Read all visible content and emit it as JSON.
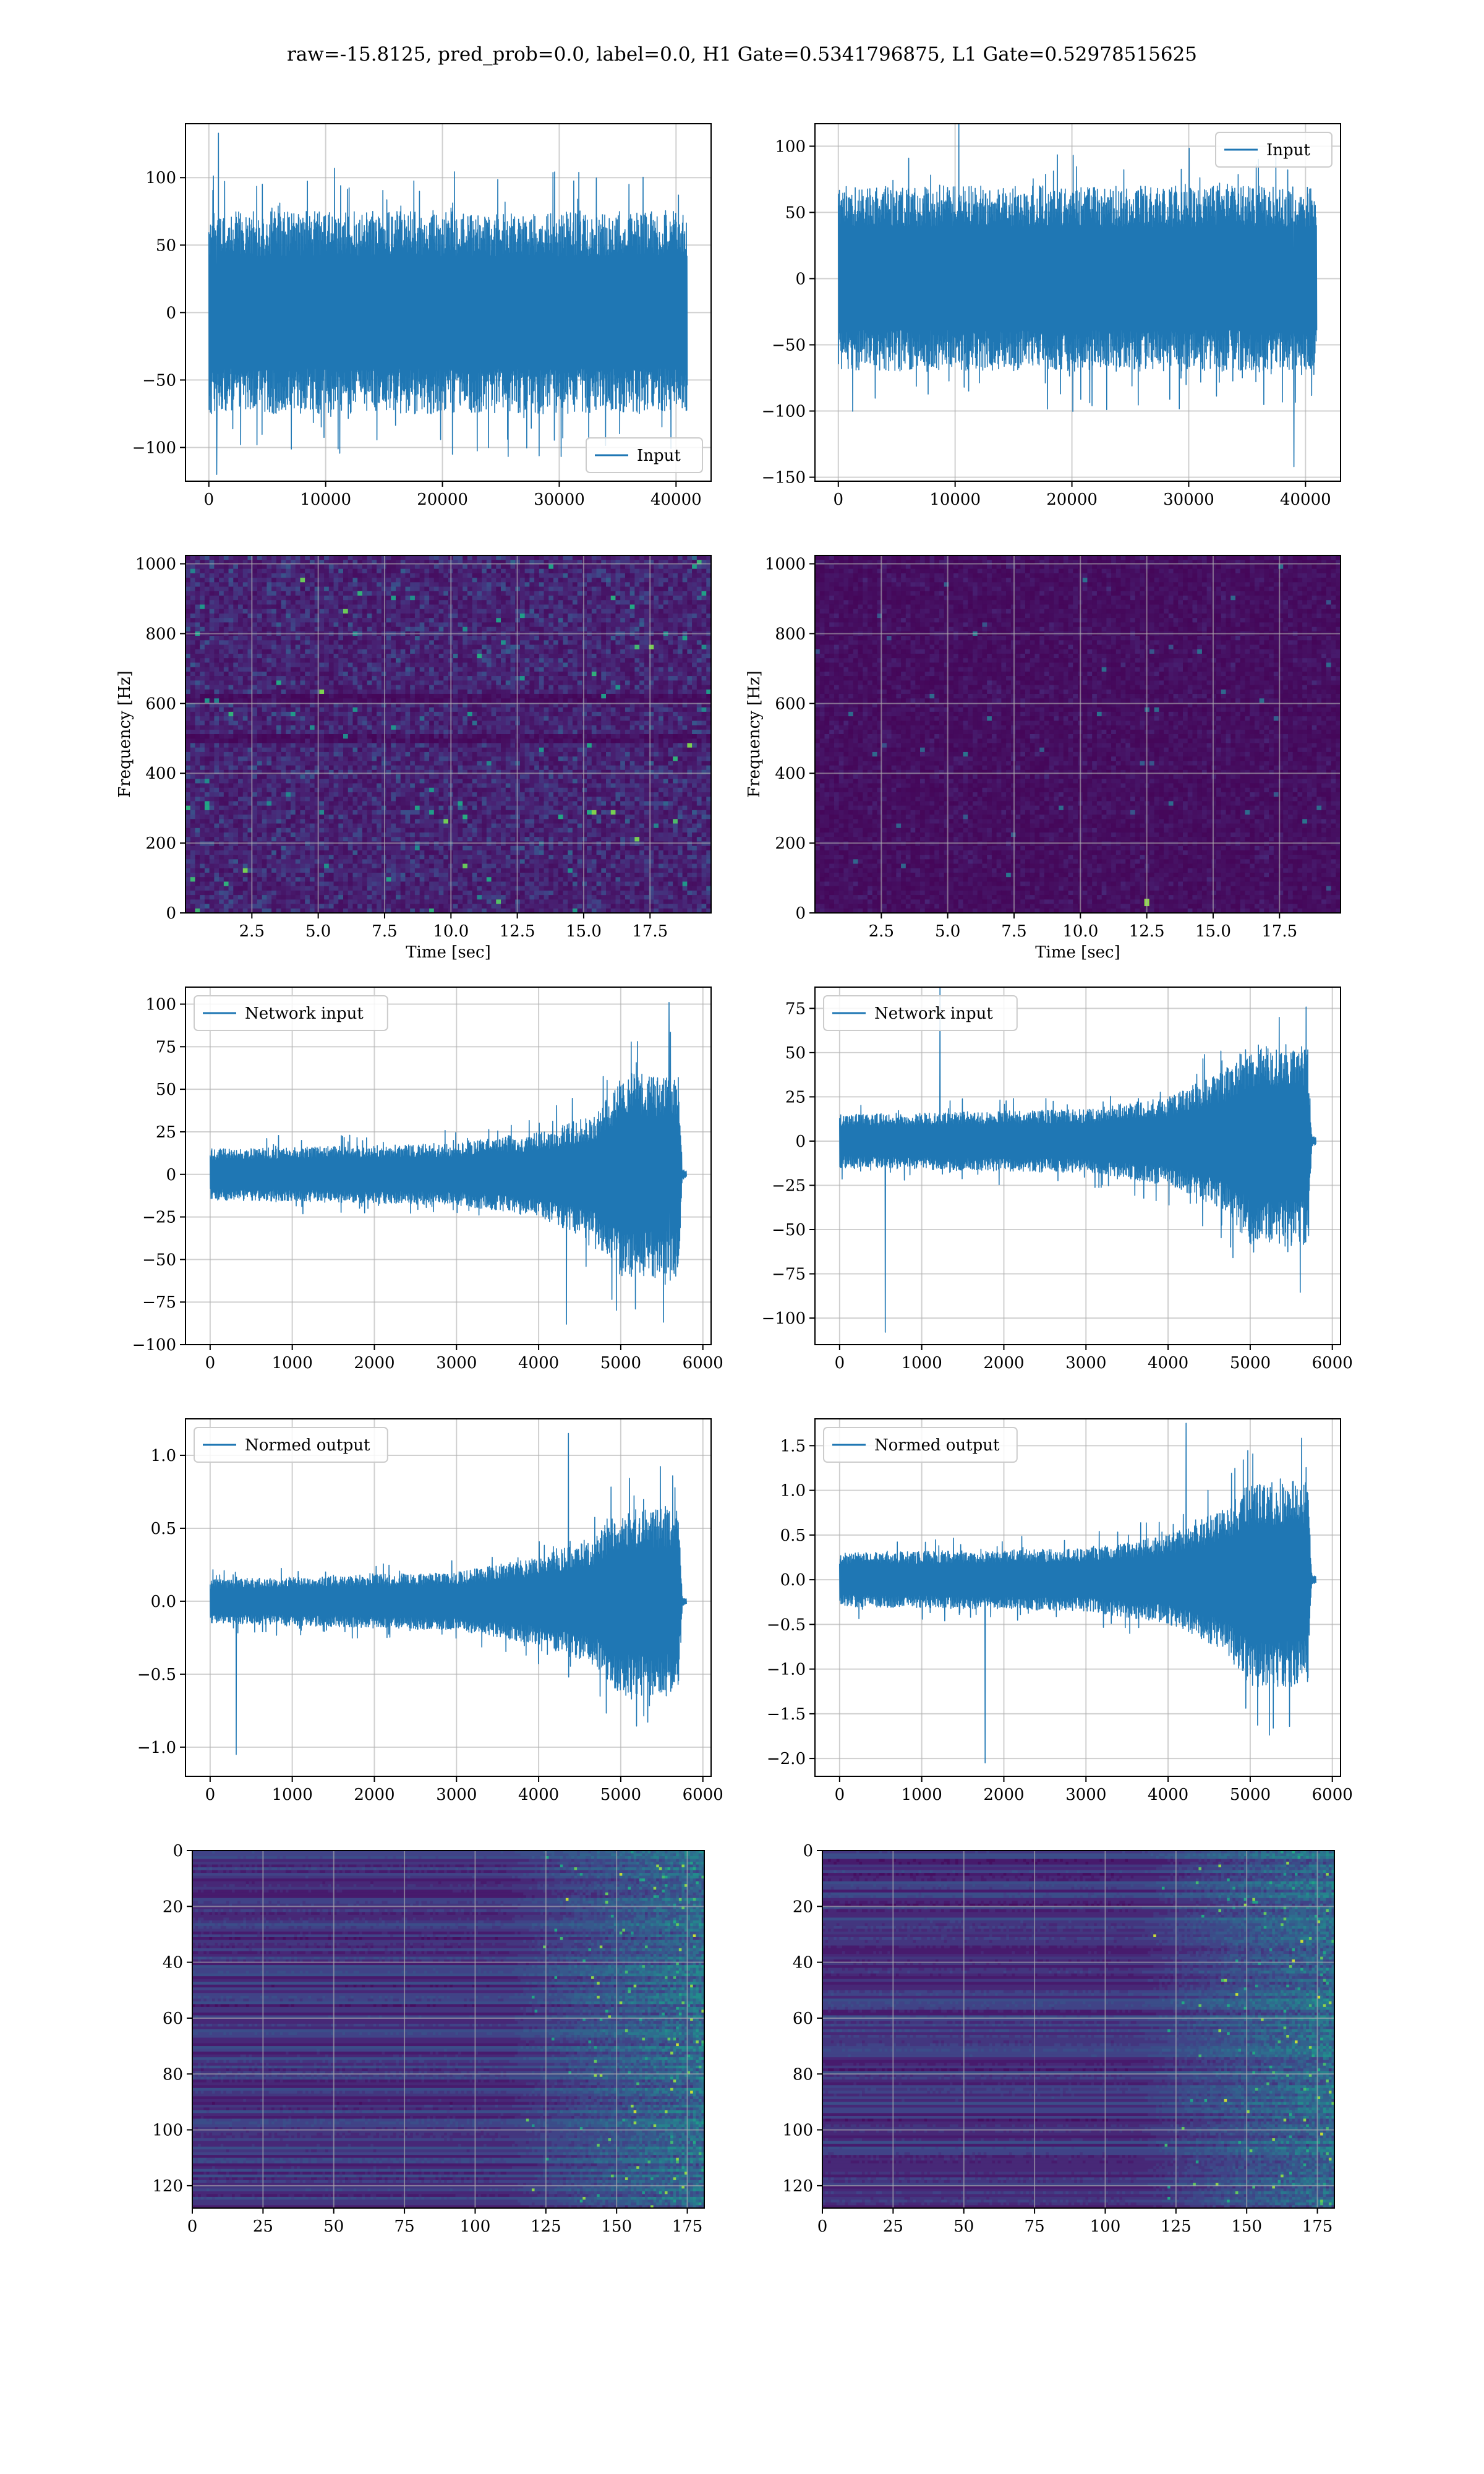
{
  "figure": {
    "title": "raw=-15.8125, pred_prob=0.0, label=0.0, H1 Gate=0.5341796875, L1 Gate=0.52978515625",
    "line_color": "#1f77b4",
    "grid": true,
    "heatmap_colormap": "viridis"
  },
  "chart_data": [
    {
      "id": "h1-input",
      "type": "line",
      "x": [
        0,
        40960
      ],
      "xlim": [
        -2000,
        43000
      ],
      "ylim": [
        -125,
        140
      ],
      "xticks": [
        0,
        10000,
        20000,
        30000,
        40000
      ],
      "xtick_labels": [
        "0",
        "10000",
        "20000",
        "30000",
        "40000"
      ],
      "yticks": [
        -100,
        -50,
        0,
        50,
        100
      ],
      "ytick_labels": [
        "−100",
        "−50",
        "0",
        "50",
        "100"
      ],
      "xlabel": "",
      "ylabel": "",
      "series": [
        {
          "name": "Input",
          "profile": [
            [
              0,
              75,
              -75
            ],
            [
              0.25,
              75,
              -75
            ],
            [
              0.5,
              75,
              -75
            ],
            [
              0.75,
              75,
              -75
            ],
            [
              1,
              75,
              -75
            ]
          ],
          "peak_max": 133,
          "peak_min": -120
        }
      ],
      "legend_position": "lower-right"
    },
    {
      "id": "l1-input",
      "type": "line",
      "x": [
        0,
        40960
      ],
      "xlim": [
        -2000,
        43000
      ],
      "ylim": [
        -153,
        117
      ],
      "xticks": [
        0,
        10000,
        20000,
        30000,
        40000
      ],
      "xtick_labels": [
        "0",
        "10000",
        "20000",
        "30000",
        "40000"
      ],
      "yticks": [
        -150,
        -100,
        -50,
        0,
        50,
        100
      ],
      "ytick_labels": [
        "−150",
        "−100",
        "−50",
        "0",
        "50",
        "100"
      ],
      "xlabel": "",
      "ylabel": "",
      "series": [
        {
          "name": "Input",
          "profile": [
            [
              0,
              70,
              -70
            ],
            [
              0.25,
              70,
              -70
            ],
            [
              0.5,
              70,
              -70
            ],
            [
              0.75,
              70,
              -70
            ],
            [
              1,
              70,
              -70
            ]
          ],
          "peak_max": 122,
          "peak_min": -142
        }
      ],
      "legend_position": "upper-right"
    },
    {
      "id": "h1-spectrogram",
      "type": "heatmap",
      "xlim": [
        0,
        19.8
      ],
      "ylim": [
        0,
        1024
      ],
      "xticks": [
        2.5,
        5.0,
        7.5,
        10.0,
        12.5,
        15.0,
        17.5
      ],
      "xtick_labels": [
        "2.5",
        "5.0",
        "7.5",
        "10.0",
        "12.5",
        "15.0",
        "17.5"
      ],
      "yticks": [
        0,
        200,
        400,
        600,
        800,
        1000
      ],
      "ytick_labels": [
        "0",
        "200",
        "400",
        "600",
        "800",
        "1000"
      ],
      "xlabel": "Time [sec]",
      "ylabel": "Frequency [Hz]",
      "intensity": "high"
    },
    {
      "id": "l1-spectrogram",
      "type": "heatmap",
      "xlim": [
        0,
        19.8
      ],
      "ylim": [
        0,
        1024
      ],
      "xticks": [
        2.5,
        5.0,
        7.5,
        10.0,
        12.5,
        15.0,
        17.5
      ],
      "xtick_labels": [
        "2.5",
        "5.0",
        "7.5",
        "10.0",
        "12.5",
        "15.0",
        "17.5"
      ],
      "yticks": [
        0,
        200,
        400,
        600,
        800,
        1000
      ],
      "ytick_labels": [
        "0",
        "200",
        "400",
        "600",
        "800",
        "1000"
      ],
      "xlabel": "Time [sec]",
      "ylabel": "Frequency [Hz]",
      "intensity": "low"
    },
    {
      "id": "h1-network-input",
      "type": "line",
      "x": [
        0,
        5800
      ],
      "xlim": [
        -300,
        6100
      ],
      "ylim": [
        -100,
        110
      ],
      "xticks": [
        0,
        1000,
        2000,
        3000,
        4000,
        5000,
        6000
      ],
      "xtick_labels": [
        "0",
        "1000",
        "2000",
        "3000",
        "4000",
        "5000",
        "6000"
      ],
      "yticks": [
        -100,
        -75,
        -50,
        -25,
        0,
        25,
        50,
        75,
        100
      ],
      "ytick_labels": [
        "−100",
        "−75",
        "−50",
        "−25",
        "0",
        "25",
        "50",
        "75",
        "100"
      ],
      "xlabel": "",
      "ylabel": "",
      "series": [
        {
          "name": "Network input",
          "profile": [
            [
              0,
              15,
              -15
            ],
            [
              3000,
              18,
              -18
            ],
            [
              4000,
              25,
              -25
            ],
            [
              4700,
              35,
              -40
            ],
            [
              5000,
              60,
              -60
            ],
            [
              5700,
              60,
              -60
            ],
            [
              5750,
              3,
              -3
            ],
            [
              5800,
              2,
              -2
            ]
          ],
          "peak_max": 101,
          "peak_min": -88
        }
      ],
      "legend_position": "upper-left"
    },
    {
      "id": "l1-network-input",
      "type": "line",
      "x": [
        0,
        5800
      ],
      "xlim": [
        -300,
        6100
      ],
      "ylim": [
        -115,
        87
      ],
      "xticks": [
        0,
        1000,
        2000,
        3000,
        4000,
        5000,
        6000
      ],
      "xtick_labels": [
        "0",
        "1000",
        "2000",
        "3000",
        "4000",
        "5000",
        "6000"
      ],
      "yticks": [
        -100,
        -75,
        -50,
        -25,
        0,
        25,
        50,
        75
      ],
      "ytick_labels": [
        "−100",
        "−75",
        "−50",
        "−25",
        "0",
        "25",
        "50",
        "75"
      ],
      "xlabel": "",
      "ylabel": "",
      "series": [
        {
          "name": "Network input",
          "profile": [
            [
              0,
              15,
              -15
            ],
            [
              3000,
              18,
              -18
            ],
            [
              4000,
              25,
              -25
            ],
            [
              4700,
              40,
              -40
            ],
            [
              5000,
              55,
              -60
            ],
            [
              5700,
              55,
              -60
            ],
            [
              5750,
              3,
              -3
            ],
            [
              5800,
              2,
              -2
            ]
          ],
          "peak_max": 88,
          "peak_min": -108
        }
      ],
      "legend_position": "upper-left"
    },
    {
      "id": "h1-normed-output",
      "type": "line",
      "x": [
        0,
        5800
      ],
      "xlim": [
        -300,
        6100
      ],
      "ylim": [
        -1.2,
        1.25
      ],
      "xticks": [
        0,
        1000,
        2000,
        3000,
        4000,
        5000,
        6000
      ],
      "xtick_labels": [
        "0",
        "1000",
        "2000",
        "3000",
        "4000",
        "5000",
        "6000"
      ],
      "yticks": [
        -1.0,
        -0.5,
        0.0,
        0.5,
        1.0
      ],
      "ytick_labels": [
        "−1.0",
        "−0.5",
        "0.0",
        "0.5",
        "1.0"
      ],
      "xlabel": "",
      "ylabel": "",
      "series": [
        {
          "name": "Normed output",
          "profile": [
            [
              0,
              0.15,
              -0.15
            ],
            [
              3000,
              0.2,
              -0.2
            ],
            [
              4000,
              0.3,
              -0.3
            ],
            [
              4700,
              0.45,
              -0.45
            ],
            [
              5000,
              0.65,
              -0.65
            ],
            [
              5700,
              0.65,
              -0.65
            ],
            [
              5750,
              0.03,
              -0.03
            ],
            [
              5800,
              0.02,
              -0.02
            ]
          ],
          "peak_max": 1.15,
          "peak_min": -1.05
        }
      ],
      "legend_position": "upper-left"
    },
    {
      "id": "l1-normed-output",
      "type": "line",
      "x": [
        0,
        5800
      ],
      "xlim": [
        -300,
        6100
      ],
      "ylim": [
        -2.2,
        1.8
      ],
      "xticks": [
        0,
        1000,
        2000,
        3000,
        4000,
        5000,
        6000
      ],
      "xtick_labels": [
        "0",
        "1000",
        "2000",
        "3000",
        "4000",
        "5000",
        "6000"
      ],
      "yticks": [
        -2.0,
        -1.5,
        -1.0,
        -0.5,
        0.0,
        0.5,
        1.0,
        1.5
      ],
      "ytick_labels": [
        "−2.0",
        "−1.5",
        "−1.0",
        "−0.5",
        "0.0",
        "0.5",
        "1.0",
        "1.5"
      ],
      "xlabel": "",
      "ylabel": "",
      "series": [
        {
          "name": "Normed output",
          "profile": [
            [
              0,
              0.3,
              -0.3
            ],
            [
              3000,
              0.35,
              -0.35
            ],
            [
              4000,
              0.5,
              -0.5
            ],
            [
              4700,
              0.8,
              -0.8
            ],
            [
              5000,
              1.1,
              -1.2
            ],
            [
              5700,
              1.1,
              -1.2
            ],
            [
              5750,
              0.05,
              -0.05
            ],
            [
              5800,
              0.04,
              -0.04
            ]
          ],
          "peak_max": 1.75,
          "peak_min": -2.05
        }
      ],
      "legend_position": "upper-left"
    },
    {
      "id": "h1-feature-map",
      "type": "heatmap",
      "xlim": [
        0,
        181
      ],
      "ylim": [
        128,
        0
      ],
      "xticks": [
        0,
        25,
        50,
        75,
        100,
        125,
        150,
        175
      ],
      "xtick_labels": [
        "0",
        "25",
        "50",
        "75",
        "100",
        "125",
        "150",
        "175"
      ],
      "yticks": [
        0,
        20,
        40,
        60,
        80,
        100,
        120
      ],
      "ytick_labels": [
        "0",
        "20",
        "40",
        "60",
        "80",
        "100",
        "120"
      ],
      "xlabel": "",
      "ylabel": ""
    },
    {
      "id": "l1-feature-map",
      "type": "heatmap",
      "xlim": [
        0,
        181
      ],
      "ylim": [
        128,
        0
      ],
      "xticks": [
        0,
        25,
        50,
        75,
        100,
        125,
        150,
        175
      ],
      "xtick_labels": [
        "0",
        "25",
        "50",
        "75",
        "100",
        "125",
        "150",
        "175"
      ],
      "yticks": [
        0,
        20,
        40,
        60,
        80,
        100,
        120
      ],
      "ytick_labels": [
        "0",
        "20",
        "40",
        "60",
        "80",
        "100",
        "120"
      ],
      "xlabel": "",
      "ylabel": ""
    }
  ]
}
